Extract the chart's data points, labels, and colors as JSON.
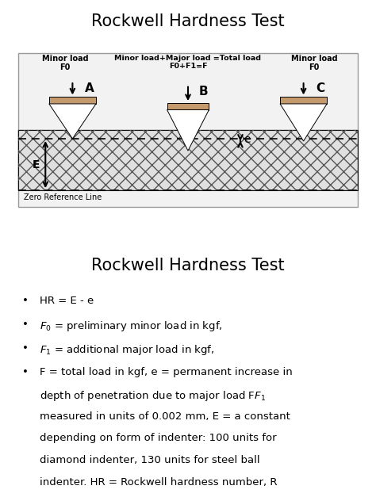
{
  "title_top": "Rockwell Hardness Test",
  "title_bottom": "Rockwell Hardness Test",
  "bg_color": "#ffffff",
  "indenter_top_color": "#c49a6c",
  "minor_load_label": "Minor load\nF0",
  "major_load_label": "Minor load+Major load =Total load\nF0+F1=F",
  "minor_load_label2": "Minor load\nF0",
  "zero_ref_label": "Zero Reference Line",
  "label_A": "A",
  "label_B": "B",
  "label_C": "C",
  "label_E": "E",
  "label_e": "e",
  "bullet1": "HR = E - e",
  "bullet2_pre": "F",
  "bullet2_sub": "0",
  "bullet2_post": " = preliminary minor load in kgf,",
  "bullet3_pre": "F",
  "bullet3_sub": "1",
  "bullet3_post": " = additional major load in kgf,",
  "bullet4_line1": "F = total load in kgf, e = permanent increase in",
  "bullet4_line2": "depth of penetration due to major load F",
  "bullet4_line2_sub": "1",
  "bullet4_line3": "measured in units of 0.002 mm, E = a constant",
  "bullet4_line4": "depending on form of indenter: 100 units for",
  "bullet4_line5": "diamond indenter, 130 units for steel ball",
  "bullet4_line6": "indenter. HR = Rockwell hardness number, R"
}
